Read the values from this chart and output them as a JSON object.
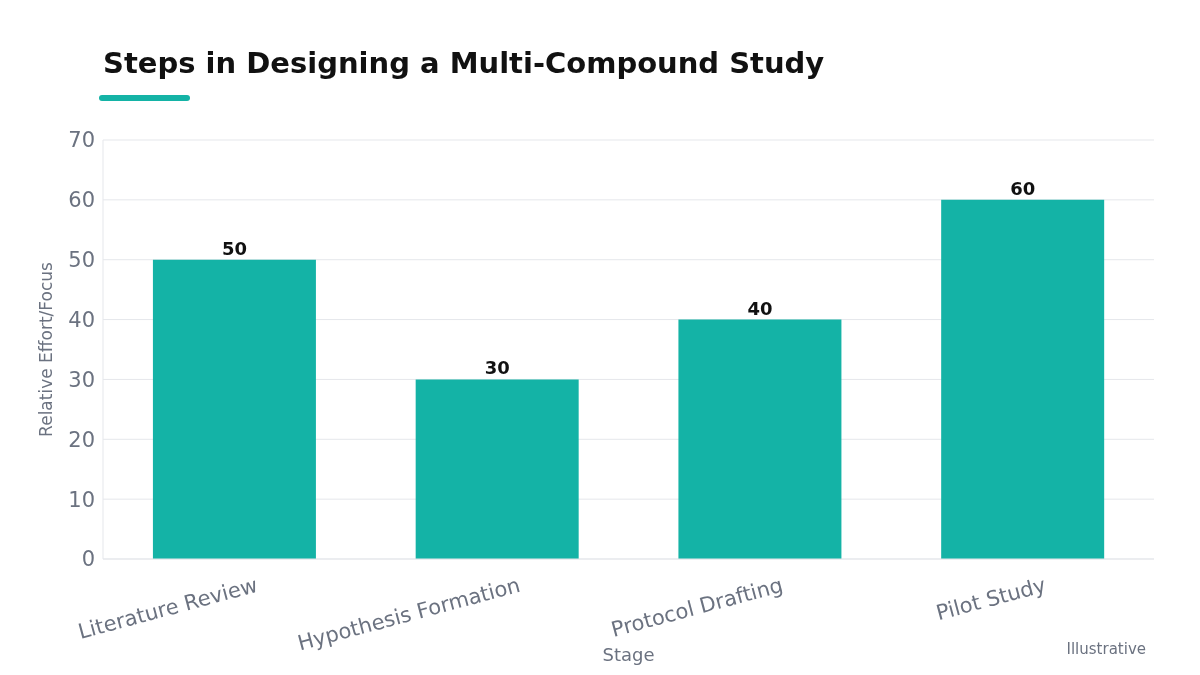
{
  "chart_data": {
    "type": "bar",
    "title": "Steps in Designing a Multi-Compound Study",
    "xlabel": "Stage",
    "ylabel": "Relative Effort/Focus",
    "categories": [
      "Literature Review",
      "Hypothesis Formation",
      "Protocol Drafting",
      "Pilot Study"
    ],
    "values": [
      50,
      30,
      40,
      60
    ],
    "color": "#14b3a6",
    "ylim": [
      0,
      70
    ],
    "yticks": [
      0,
      10,
      20,
      30,
      40,
      50,
      60,
      70
    ],
    "grid": "y",
    "data_labels": true,
    "annotations": [
      "Illustrative"
    ]
  }
}
